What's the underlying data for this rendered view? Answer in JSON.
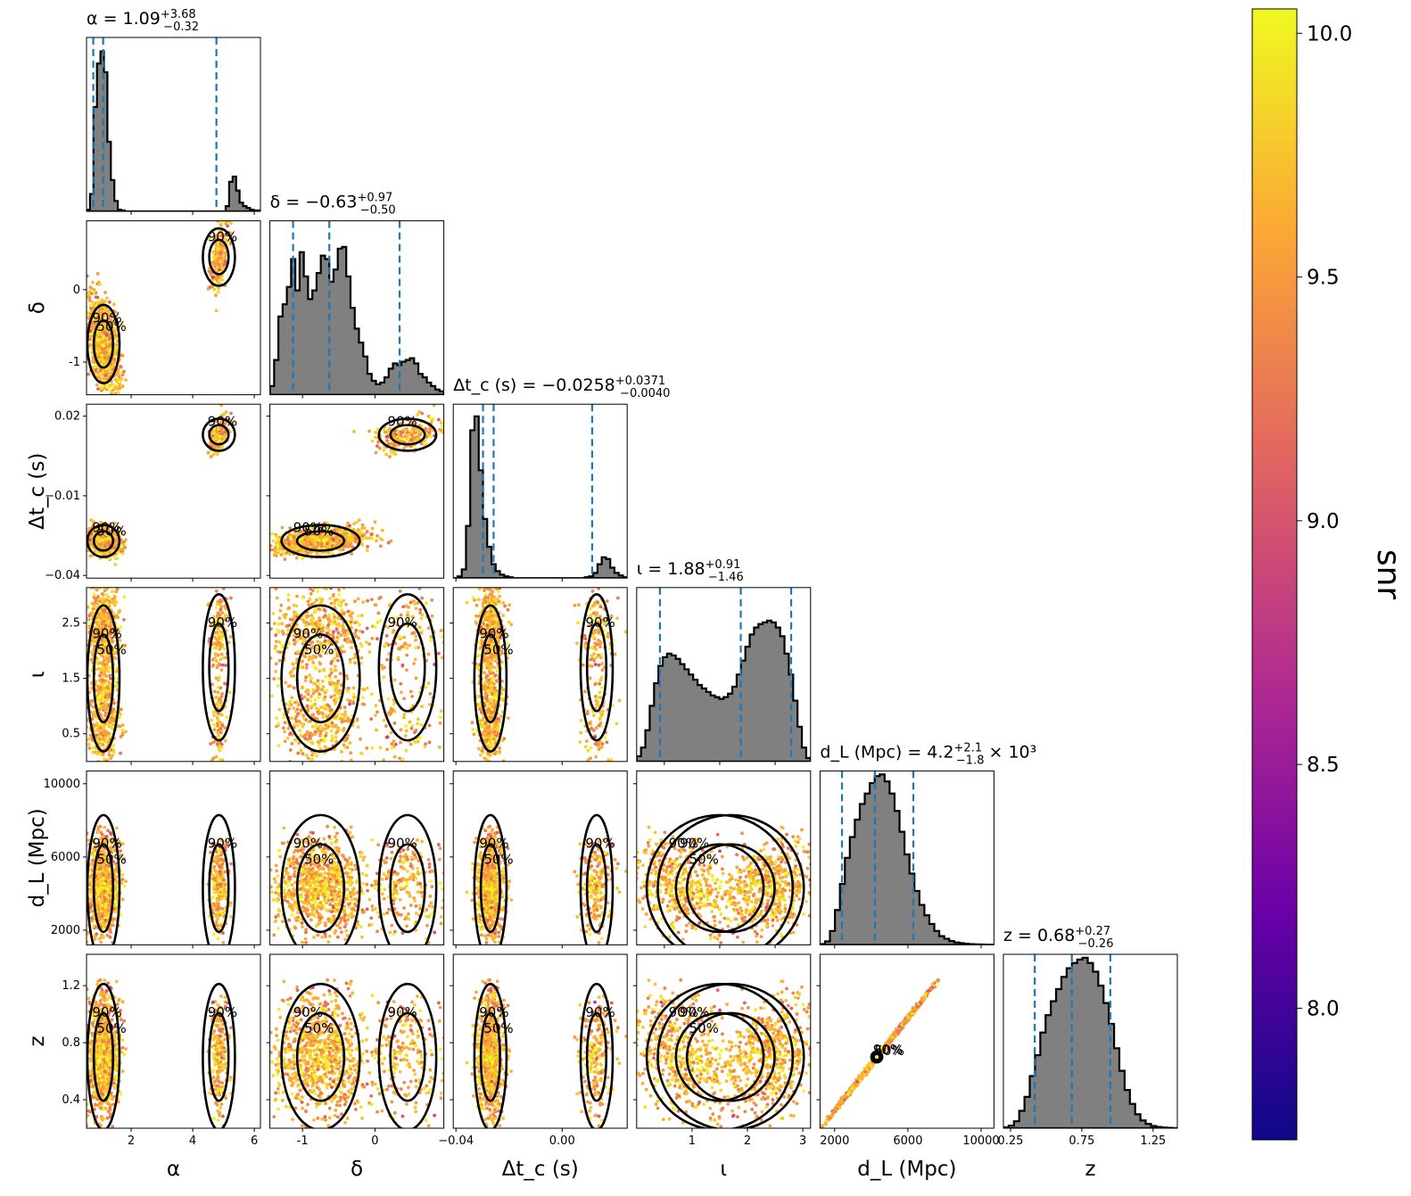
{
  "chart_data": {
    "type": "corner",
    "parameters": [
      {
        "name": "alpha",
        "label": "α",
        "title": "α = 1.09",
        "sup": "+3.68",
        "sub": "−0.32",
        "suffix": "",
        "median": 1.09,
        "quantiles": [
          0.77,
          1.09,
          4.77
        ],
        "ticks": [
          2,
          4,
          6
        ],
        "range": [
          0.55,
          6.2
        ]
      },
      {
        "name": "delta",
        "label": "δ",
        "title": "δ = −0.63",
        "sup": "+0.97",
        "sub": "−0.50",
        "suffix": "",
        "median": -0.63,
        "quantiles": [
          -1.13,
          -0.63,
          0.34
        ],
        "ticks": [
          -1,
          0
        ],
        "range": [
          -1.45,
          0.95
        ]
      },
      {
        "name": "dtc",
        "label": "Δt_c (s)",
        "title": "Δt_c (s) = −0.0258",
        "sup": "+0.0371",
        "sub": "−0.0040",
        "suffix": "",
        "median": -0.0258,
        "quantiles": [
          -0.0298,
          -0.0258,
          0.0113
        ],
        "ticks": [
          -0.04,
          0.0
        ],
        "tick_labels": [
          "−0.04",
          "0.00"
        ],
        "left_ticks": [
          0.02,
          -0.01,
          -0.04
        ],
        "left_tick_labels": [
          "0.02",
          "−0.01",
          "−0.04"
        ],
        "range": [
          -0.041,
          0.0245
        ]
      },
      {
        "name": "iota",
        "label": "ι",
        "title": "ι = 1.88",
        "sup": "+0.91",
        "sub": "−1.46",
        "suffix": "",
        "median": 1.88,
        "quantiles": [
          0.42,
          1.88,
          2.79
        ],
        "ticks": [
          0.5,
          1.5,
          2.5
        ],
        "bottom_ticks": [
          1,
          2,
          3
        ],
        "range": [
          0.0,
          3.14
        ]
      },
      {
        "name": "dL",
        "label": "d_L (Mpc)",
        "title": "d_L (Mpc) = 4.2",
        "sup": "+2.1",
        "sub": "−1.8",
        "suffix": "× 10³",
        "median": 4200,
        "quantiles": [
          2400,
          4200,
          6300
        ],
        "ticks": [
          2000,
          6000,
          10000
        ],
        "range": [
          1200,
          10700
        ]
      },
      {
        "name": "z",
        "label": "z",
        "title": "z = 0.68",
        "sup": "+0.27",
        "sub": "−0.26",
        "suffix": "",
        "median": 0.68,
        "quantiles": [
          0.42,
          0.68,
          0.95
        ],
        "ticks": [
          0.4,
          0.8,
          1.2
        ],
        "bottom_ticks": [
          0.25,
          0.75,
          1.25
        ],
        "range": [
          0.2,
          1.42
        ]
      }
    ],
    "histograms": [
      {
        "param": "alpha",
        "counts": [
          0.01,
          0.1,
          0.6,
          0.85,
          0.92,
          0.8,
          0.4,
          0.18,
          0.06,
          0.01,
          0.005,
          0,
          0,
          0,
          0,
          0,
          0,
          0,
          0,
          0,
          0,
          0,
          0,
          0,
          0,
          0,
          0,
          0,
          0,
          0,
          0,
          0,
          0,
          0,
          0,
          0,
          0,
          0,
          0,
          0,
          0.03,
          0.17,
          0.2,
          0.12,
          0.05,
          0.03,
          0.02,
          0.01,
          0.005,
          0.005
        ]
      },
      {
        "param": "delta",
        "counts": [
          0.05,
          0.2,
          0.45,
          0.52,
          0.62,
          0.78,
          0.6,
          0.82,
          0.68,
          0.55,
          0.6,
          0.7,
          0.8,
          0.78,
          0.65,
          0.72,
          0.84,
          0.85,
          0.68,
          0.5,
          0.38,
          0.3,
          0.22,
          0.12,
          0.08,
          0.06,
          0.07,
          0.1,
          0.15,
          0.18,
          0.17,
          0.19,
          0.2,
          0.21,
          0.18,
          0.12,
          0.1,
          0.07,
          0.05,
          0.03,
          0.02
        ]
      },
      {
        "param": "dtc",
        "counts": [
          0,
          0.01,
          0.05,
          0.3,
          0.85,
          0.93,
          0.62,
          0.34,
          0.18,
          0.08,
          0.04,
          0.02,
          0.01,
          0.005,
          0,
          0,
          0,
          0,
          0,
          0,
          0,
          0,
          0,
          0,
          0,
          0,
          0,
          0,
          0,
          0,
          0,
          0.005,
          0.01,
          0.03,
          0.08,
          0.12,
          0.11,
          0.06,
          0.03,
          0.015,
          0.005
        ]
      },
      {
        "param": "iota",
        "counts": [
          0.03,
          0.08,
          0.18,
          0.32,
          0.45,
          0.55,
          0.6,
          0.62,
          0.61,
          0.59,
          0.56,
          0.53,
          0.5,
          0.47,
          0.44,
          0.42,
          0.4,
          0.38,
          0.37,
          0.36,
          0.37,
          0.39,
          0.43,
          0.5,
          0.58,
          0.66,
          0.73,
          0.77,
          0.79,
          0.8,
          0.81,
          0.8,
          0.77,
          0.72,
          0.62,
          0.5,
          0.35,
          0.2,
          0.08,
          0.02
        ]
      },
      {
        "param": "dL",
        "counts": [
          0.005,
          0.02,
          0.08,
          0.2,
          0.35,
          0.5,
          0.62,
          0.72,
          0.81,
          0.87,
          0.93,
          0.97,
          0.98,
          0.94,
          0.87,
          0.77,
          0.65,
          0.52,
          0.41,
          0.31,
          0.23,
          0.17,
          0.12,
          0.08,
          0.05,
          0.035,
          0.022,
          0.014,
          0.01,
          0.006,
          0.004,
          0.003,
          0.002,
          0.001,
          0.001
        ]
      },
      {
        "param": "z",
        "counts": [
          0.005,
          0.015,
          0.04,
          0.1,
          0.18,
          0.3,
          0.42,
          0.55,
          0.65,
          0.73,
          0.8,
          0.87,
          0.92,
          0.95,
          0.97,
          0.98,
          0.95,
          0.9,
          0.82,
          0.72,
          0.6,
          0.46,
          0.33,
          0.22,
          0.14,
          0.08,
          0.045,
          0.025,
          0.013,
          0.007,
          0.004,
          0.002,
          0.001
        ]
      }
    ],
    "contour_labels": [
      "50%",
      "90%"
    ],
    "colorbar": {
      "label": "snr",
      "range": [
        7.73,
        10.05
      ],
      "ticks": [
        8.0,
        8.5,
        9.0,
        9.5,
        10.0
      ],
      "tick_labels": [
        "8.0",
        "8.5",
        "9.0",
        "9.5",
        "10.0"
      ],
      "colormap": "plasma",
      "stops": [
        "#0d0887",
        "#6a00a8",
        "#b12a90",
        "#e16462",
        "#fca636",
        "#f0f921"
      ]
    },
    "colors": {
      "histogram_fill": "#808080",
      "quantile_line": "#1f77b4",
      "contour": "#000000"
    },
    "modes": [
      {
        "alpha": 1.1,
        "delta": -0.75,
        "dtc": -0.027,
        "iota": 1.5,
        "dL": 4300,
        "z": 0.7,
        "s_alpha": 0.25,
        "s_delta": 0.3,
        "s_dtc": 0.0022,
        "weight": 0.8
      },
      {
        "alpha": 4.85,
        "delta": 0.45,
        "dtc": 0.013,
        "iota": 1.7,
        "dL": 4300,
        "z": 0.7,
        "s_alpha": 0.15,
        "s_delta": 0.22,
        "s_dtc": 0.0028,
        "weight": 0.2
      }
    ]
  }
}
